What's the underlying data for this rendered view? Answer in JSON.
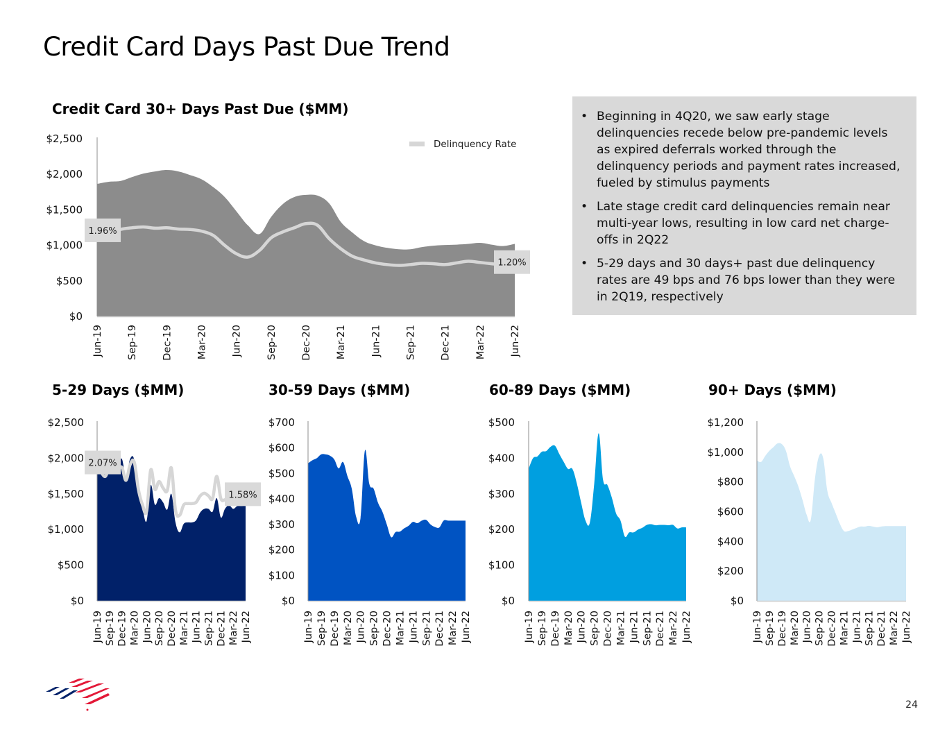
{
  "page": {
    "title": "Credit Card Days Past Due Trend",
    "page_number": "24"
  },
  "commentary": {
    "bullets": [
      "Beginning in 4Q20, we saw early stage delinquencies recede below pre-pandemic levels as expired deferrals worked through the delinquency periods and payment rates increased, fueled by stimulus payments",
      "Late stage credit card delinquencies remain near multi-year lows, resulting in low card net charge-offs in 2Q22",
      "5-29 days and 30 days+ past due delinquency rates are 49 bps and 76 bps lower than they were in 2Q19, respectively"
    ],
    "bullet_glyph": "•"
  },
  "colors": {
    "main_area": "#8c8c8c",
    "rate_line": "#d6d6d6",
    "label_box": "#d9d9d9",
    "days_5_29": "#012169",
    "days_30_59": "#0053c2",
    "days_60_89": "#009fe0",
    "days_90_plus": "#cfe9f7",
    "logo_blue": "#012169",
    "logo_red": "#e31837"
  },
  "chart_data": [
    {
      "id": "main",
      "type": "area",
      "title": "Credit Card 30+ Days Past Due ($MM)",
      "ylabel": "$MM",
      "ylim": [
        0,
        2500
      ],
      "yticks": [
        "$0",
        "$500",
        "$1,000",
        "$1,500",
        "$2,000",
        "$2,500"
      ],
      "ytick_values": [
        0,
        500,
        1000,
        1500,
        2000,
        2500
      ],
      "xtick_labels": [
        "Jun-19",
        "Sep-19",
        "Dec-19",
        "Mar-20",
        "Jun-20",
        "Sep-20",
        "Dec-20",
        "Mar-21",
        "Jun-21",
        "Sep-21",
        "Dec-21",
        "Mar-22",
        "Jun-22"
      ],
      "x": [
        "Jun-19",
        "Jul-19",
        "Aug-19",
        "Sep-19",
        "Oct-19",
        "Nov-19",
        "Dec-19",
        "Jan-20",
        "Feb-20",
        "Mar-20",
        "Apr-20",
        "May-20",
        "Jun-20",
        "Jul-20",
        "Aug-20",
        "Sep-20",
        "Oct-20",
        "Nov-20",
        "Dec-20",
        "Jan-21",
        "Feb-21",
        "Mar-21",
        "Apr-21",
        "May-21",
        "Jun-21",
        "Jul-21",
        "Aug-21",
        "Sep-21",
        "Oct-21",
        "Nov-21",
        "Dec-21",
        "Jan-22",
        "Feb-22",
        "Mar-22",
        "Apr-22",
        "May-22",
        "Jun-22"
      ],
      "series": [
        {
          "name": "30+ Days Past Due ($MM)",
          "values": [
            1865,
            1895,
            1905,
            1960,
            2010,
            2040,
            2060,
            2040,
            1990,
            1930,
            1820,
            1680,
            1480,
            1280,
            1160,
            1400,
            1580,
            1680,
            1710,
            1700,
            1590,
            1330,
            1180,
            1060,
            1000,
            965,
            945,
            945,
            975,
            995,
            1005,
            1010,
            1020,
            1035,
            1010,
            990,
            1020
          ]
        },
        {
          "name": "Delinquency Rate",
          "axis": "secondary",
          "unit": "%",
          "values": [
            1.96,
            1.98,
            2.08,
            2.12,
            2.14,
            2.11,
            2.12,
            2.09,
            2.08,
            2.04,
            1.94,
            1.7,
            1.5,
            1.42,
            1.58,
            1.88,
            2.02,
            2.12,
            2.22,
            2.18,
            1.86,
            1.62,
            1.44,
            1.35,
            1.28,
            1.24,
            1.22,
            1.24,
            1.27,
            1.26,
            1.24,
            1.28,
            1.32,
            1.29,
            1.26,
            1.23,
            1.2
          ]
        }
      ],
      "rate_ylim": [
        0,
        4.25
      ],
      "data_labels": [
        {
          "point": "Jun-19",
          "text": "1.96%"
        },
        {
          "point": "Jun-22",
          "text": "1.20%"
        }
      ],
      "legend": {
        "entries": [
          "Delinquency Rate"
        ],
        "position": "top-right"
      }
    },
    {
      "id": "d5_29",
      "type": "area",
      "title": "5-29 Days ($MM)",
      "ylim": [
        0,
        2500
      ],
      "yticks": [
        "$0",
        "$500",
        "$1,000",
        "$1,500",
        "$2,000",
        "$2,500"
      ],
      "ytick_values": [
        0,
        500,
        1000,
        1500,
        2000,
        2500
      ],
      "xtick_labels": [
        "Jun-19",
        "Sep-19",
        "Dec-19",
        "Mar-20",
        "Jun-20",
        "Sep-20",
        "Dec-20",
        "Mar-21",
        "Jun-21",
        "Sep-21",
        "Dec-21",
        "Mar-22",
        "Jun-22"
      ],
      "series": [
        {
          "name": "5-29 Days ($MM)",
          "values": [
            1960,
            1880,
            1780,
            2000,
            1920,
            1920,
            1990,
            1740,
            1990,
            1980,
            1550,
            1300,
            1120,
            1620,
            1350,
            1440,
            1380,
            1280,
            1500,
            1100,
            960,
            1080,
            1100,
            1100,
            1130,
            1240,
            1290,
            1290,
            1250,
            1440,
            1170,
            1290,
            1340,
            1290,
            1330,
            1330,
            1340
          ]
        },
        {
          "name": "Delinquency Rate",
          "axis": "secondary",
          "unit": "%",
          "values": [
            2.07,
            1.98,
            1.92,
            2.06,
            2.02,
            2.02,
            2.06,
            1.86,
            2.1,
            2.14,
            1.72,
            1.48,
            1.38,
            2.02,
            1.72,
            1.84,
            1.74,
            1.7,
            2.05,
            1.4,
            1.32,
            1.48,
            1.5,
            1.5,
            1.52,
            1.62,
            1.66,
            1.62,
            1.58,
            1.92,
            1.58,
            1.56,
            1.58,
            1.56,
            1.58,
            1.58,
            1.58
          ]
        }
      ],
      "rate_ylim": [
        0,
        2.75
      ],
      "data_labels": [
        {
          "point": "Jun-19",
          "text": "2.07%"
        },
        {
          "point": "Jun-22",
          "text": "1.58%"
        }
      ]
    },
    {
      "id": "d30_59",
      "type": "area",
      "title": "30-59 Days ($MM)",
      "ylim": [
        0,
        700
      ],
      "yticks": [
        "$0",
        "$100",
        "$200",
        "$300",
        "$400",
        "$500",
        "$600",
        "$700"
      ],
      "ytick_values": [
        0,
        100,
        200,
        300,
        400,
        500,
        600,
        700
      ],
      "xtick_labels": [
        "Jun-19",
        "Sep-19",
        "Dec-19",
        "Mar-20",
        "Jun-20",
        "Sep-20",
        "Dec-20",
        "Mar-21",
        "Jun-21",
        "Sep-21",
        "Dec-21",
        "Mar-22",
        "Jun-22"
      ],
      "series": [
        {
          "name": "30-59 Days ($MM)",
          "values": [
            540,
            552,
            560,
            575,
            575,
            570,
            555,
            520,
            545,
            490,
            440,
            330,
            325,
            590,
            460,
            440,
            385,
            350,
            300,
            250,
            270,
            272,
            285,
            295,
            310,
            305,
            315,
            318,
            300,
            290,
            288,
            315,
            315,
            315,
            315,
            315,
            315
          ]
        }
      ]
    },
    {
      "id": "d60_89",
      "type": "area",
      "title": "60-89 Days ($MM)",
      "ylim": [
        0,
        500
      ],
      "yticks": [
        "$0",
        "$100",
        "$200",
        "$300",
        "$400",
        "$500"
      ],
      "ytick_values": [
        0,
        100,
        200,
        300,
        400,
        500
      ],
      "xtick_labels": [
        "Jun-19",
        "Sep-19",
        "Dec-19",
        "Mar-20",
        "Jun-20",
        "Sep-20",
        "Dec-20",
        "Mar-21",
        "Jun-21",
        "Sep-21",
        "Dec-21",
        "Mar-22",
        "Jun-22"
      ],
      "series": [
        {
          "name": "60-89 Days ($MM)",
          "values": [
            370,
            400,
            405,
            418,
            420,
            432,
            435,
            412,
            390,
            370,
            370,
            330,
            275,
            225,
            220,
            330,
            470,
            340,
            325,
            290,
            245,
            225,
            180,
            192,
            192,
            200,
            205,
            213,
            215,
            212,
            213,
            213,
            212,
            213,
            203,
            206,
            206
          ]
        }
      ]
    },
    {
      "id": "d90_plus",
      "type": "area",
      "title": "90+ Days ($MM)",
      "ylim": [
        0,
        1200
      ],
      "yticks": [
        "$0",
        "$200",
        "$400",
        "$600",
        "$800",
        "$1,000",
        "$1,200"
      ],
      "ytick_values": [
        0,
        200,
        400,
        600,
        800,
        1000,
        1200
      ],
      "xtick_labels": [
        "Jun-19",
        "Sep-19",
        "Dec-19",
        "Mar-20",
        "Jun-20",
        "Sep-20",
        "Dec-20",
        "Mar-21",
        "Jun-21",
        "Sep-21",
        "Dec-21",
        "Mar-22",
        "Jun-22"
      ],
      "series": [
        {
          "name": "90+ Days ($MM)",
          "values": [
            945,
            935,
            975,
            1010,
            1035,
            1060,
            1055,
            1010,
            905,
            840,
            770,
            680,
            580,
            545,
            820,
            975,
            960,
            740,
            660,
            590,
            520,
            470,
            470,
            480,
            490,
            500,
            500,
            505,
            500,
            495,
            500,
            503,
            503,
            503,
            503,
            503,
            503
          ]
        }
      ]
    }
  ]
}
